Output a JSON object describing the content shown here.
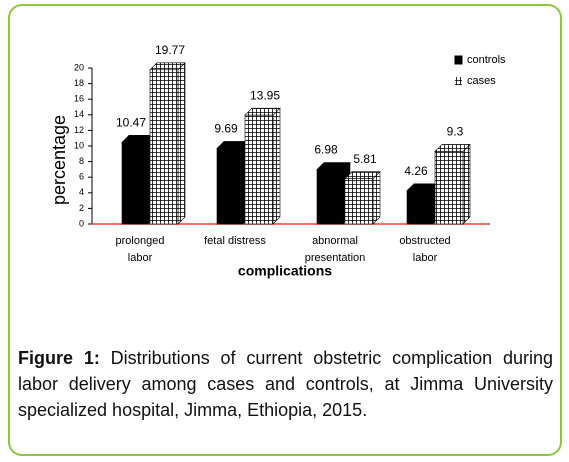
{
  "chart_data": {
    "type": "bar3d",
    "ylabel": "percentage",
    "xlabel": "complications",
    "categories": [
      "prolonged labor",
      "fetal distress",
      "abnormal presentation",
      "obstructed labor"
    ],
    "series": [
      {
        "name": "controls",
        "color": "#000000",
        "values": [
          10.47,
          9.69,
          6.98,
          4.26
        ]
      },
      {
        "name": "cases",
        "color": "hatch",
        "values": [
          19.77,
          13.95,
          5.81,
          9.3
        ]
      }
    ],
    "ylim": [
      0,
      20
    ],
    "yticks": [
      0,
      2,
      4,
      6,
      8,
      10,
      12,
      14,
      16,
      18,
      20
    ],
    "legend": "top-right"
  },
  "caption": {
    "label": "Figure 1:",
    "text": "Distributions of current obstetric complication during labor delivery among cases and controls, at Jimma University specialized hospital, Jimma, Ethiopia, 2015."
  }
}
